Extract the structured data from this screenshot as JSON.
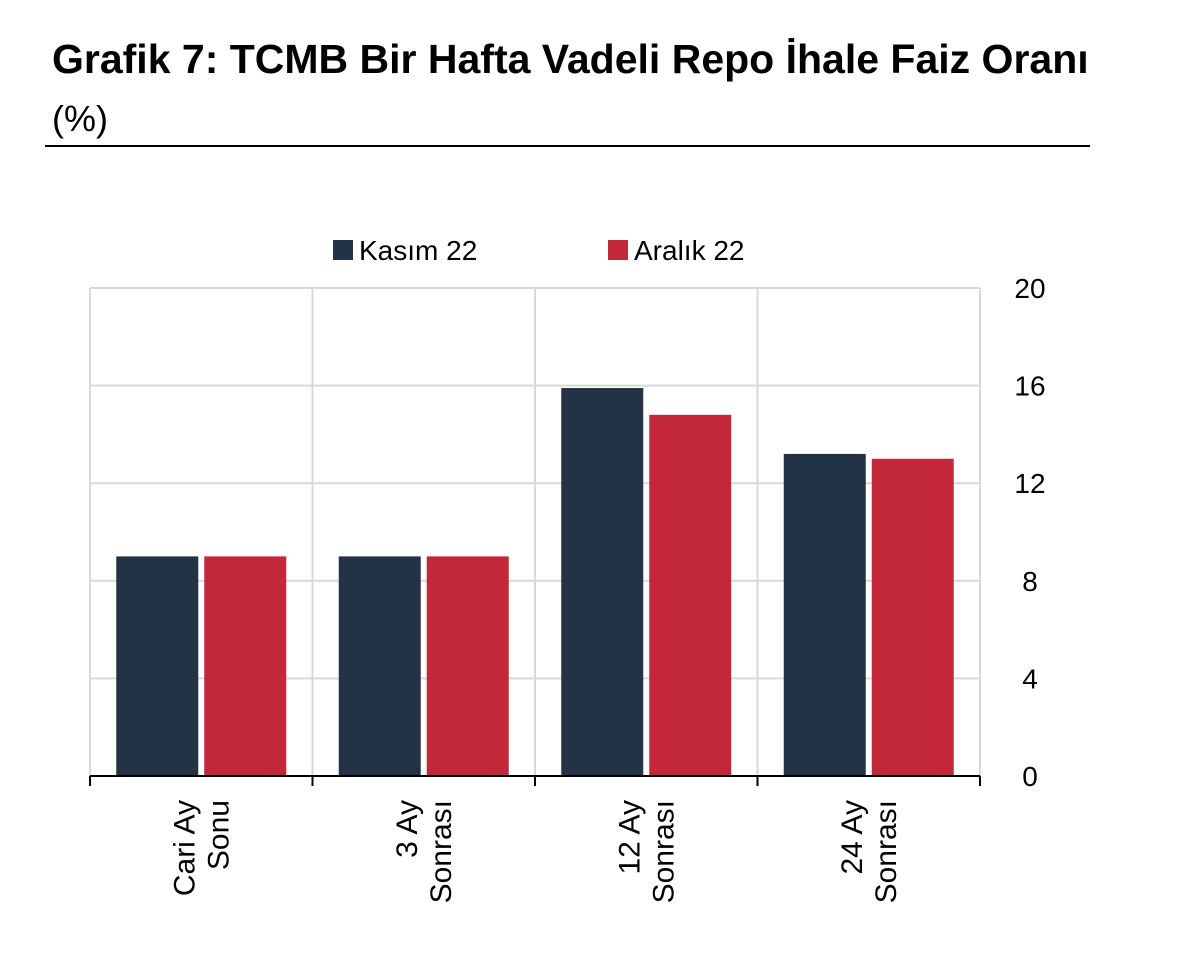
{
  "header": {
    "title": "Grafik 7: TCMB Bir Hafta Vadeli Repo İhale Faiz Oranı",
    "subtitle": "(%)"
  },
  "chart_data": {
    "type": "bar",
    "categories": [
      [
        "Cari Ay",
        "Sonu"
      ],
      [
        "3 Ay",
        "Sonrası"
      ],
      [
        "12 Ay",
        "Sonrası"
      ],
      [
        "24 Ay",
        "Sonrası"
      ]
    ],
    "series": [
      {
        "name": "Kasım 22",
        "color": "#243245",
        "values": [
          9.0,
          9.0,
          15.9,
          13.2
        ]
      },
      {
        "name": "Aralık 22",
        "color": "#c3283a",
        "values": [
          9.0,
          9.0,
          14.8,
          13.0
        ]
      }
    ],
    "ylim": [
      0,
      20
    ],
    "yticks": [
      0,
      4,
      8,
      12,
      16,
      20
    ],
    "y_axis_position": "right",
    "grid": true,
    "legend": "top-center"
  }
}
